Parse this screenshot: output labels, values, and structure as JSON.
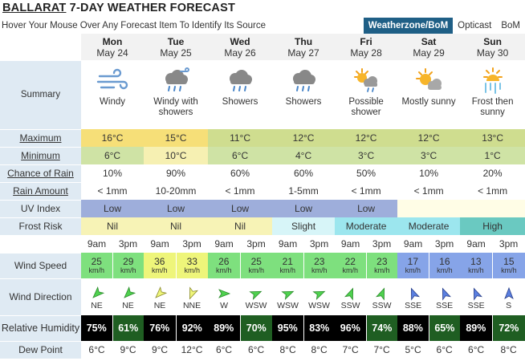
{
  "header": {
    "title_city": "BALLARAT",
    "title_rest": " 7-DAY WEATHER FORECAST",
    "subtitle": "Hover Your Mouse Over Any Forecast Item To Identify Its Source",
    "sources": [
      "Weatherzone/BoM",
      "Opticast",
      "BoM"
    ]
  },
  "labels": {
    "summary": "Summary",
    "maximum": "Maximum",
    "minimum": "Minimum",
    "chance_of_rain": "Chance of Rain",
    "rain_amount": "Rain Amount",
    "uv_index": "UV Index",
    "frost_risk": "Frost Risk",
    "wind_speed": "Wind Speed",
    "wind_direction": "Wind Direction",
    "relative_humidity": "Relative Humidity",
    "dew_point": "Dew Point",
    "am": "9am",
    "pm": "3pm",
    "unit": "km/h"
  },
  "days": [
    {
      "name": "Mon",
      "date": "May 24",
      "icon": "windy-icon",
      "summary": "Windy",
      "max": "16°C",
      "min": "6°C",
      "rain_chance": "10%",
      "rain_amount": "< 1mm",
      "uv": "Low",
      "frost": "Nil",
      "wind_am": "25",
      "wind_pm": "29",
      "dir_am": "NE",
      "dir_pm": "NE",
      "hum_am": "75%",
      "hum_pm": "61%",
      "dew_am": "6°C",
      "dew_pm": "9°C"
    },
    {
      "name": "Tue",
      "date": "May 25",
      "icon": "windy-showers-icon",
      "summary": "Windy with showers",
      "max": "15°C",
      "min": "10°C",
      "rain_chance": "90%",
      "rain_amount": "10-20mm",
      "uv": "Low",
      "frost": "Nil",
      "wind_am": "36",
      "wind_pm": "33",
      "dir_am": "NE",
      "dir_pm": "NNE",
      "hum_am": "76%",
      "hum_pm": "92%",
      "dew_am": "9°C",
      "dew_pm": "12°C"
    },
    {
      "name": "Wed",
      "date": "May 26",
      "icon": "showers-icon",
      "summary": "Showers",
      "max": "11°C",
      "min": "6°C",
      "rain_chance": "60%",
      "rain_amount": "< 1mm",
      "uv": "Low",
      "frost": "Nil",
      "wind_am": "26",
      "wind_pm": "25",
      "dir_am": "W",
      "dir_pm": "WSW",
      "hum_am": "89%",
      "hum_pm": "70%",
      "dew_am": "6°C",
      "dew_pm": "6°C"
    },
    {
      "name": "Thu",
      "date": "May 27",
      "icon": "showers-icon",
      "summary": "Showers",
      "max": "12°C",
      "min": "4°C",
      "rain_chance": "60%",
      "rain_amount": "1-5mm",
      "uv": "Low",
      "frost": "Slight",
      "wind_am": "21",
      "wind_pm": "23",
      "dir_am": "WSW",
      "dir_pm": "WSW",
      "hum_am": "95%",
      "hum_pm": "83%",
      "dew_am": "8°C",
      "dew_pm": "8°C"
    },
    {
      "name": "Fri",
      "date": "May 28",
      "icon": "possible-shower-icon",
      "summary": "Possible shower",
      "max": "12°C",
      "min": "3°C",
      "rain_chance": "50%",
      "rain_amount": "< 1mm",
      "uv": "Low",
      "frost": "Moderate",
      "wind_am": "22",
      "wind_pm": "23",
      "dir_am": "SSW",
      "dir_pm": "SSW",
      "hum_am": "96%",
      "hum_pm": "74%",
      "dew_am": "7°C",
      "dew_pm": "7°C"
    },
    {
      "name": "Sat",
      "date": "May 29",
      "icon": "mostly-sunny-icon",
      "summary": "Mostly sunny",
      "max": "12°C",
      "min": "3°C",
      "rain_chance": "10%",
      "rain_amount": "< 1mm",
      "uv": "",
      "frost": "Moderate",
      "wind_am": "17",
      "wind_pm": "16",
      "dir_am": "SSE",
      "dir_pm": "SSE",
      "hum_am": "88%",
      "hum_pm": "65%",
      "dew_am": "5°C",
      "dew_pm": "6°C"
    },
    {
      "name": "Sun",
      "date": "May 30",
      "icon": "frost-sunny-icon",
      "summary": "Frost then sunny",
      "max": "13°C",
      "min": "1°C",
      "rain_chance": "20%",
      "rain_amount": "< 1mm",
      "uv": "",
      "frost": "High",
      "wind_am": "13",
      "wind_pm": "15",
      "dir_am": "SSE",
      "dir_pm": "S",
      "hum_am": "89%",
      "hum_pm": "72%",
      "dew_am": "6°C",
      "dew_pm": "8°C"
    }
  ],
  "colors": {
    "header_active": "#1f5f86",
    "label_bg": "#dfeaf3",
    "max_warm": "#f6df78",
    "max_cool": "#cfdd8f",
    "humidity_high": "#000000",
    "humidity_mid": "#1f5e22",
    "uv_low": "#9eaedb"
  }
}
